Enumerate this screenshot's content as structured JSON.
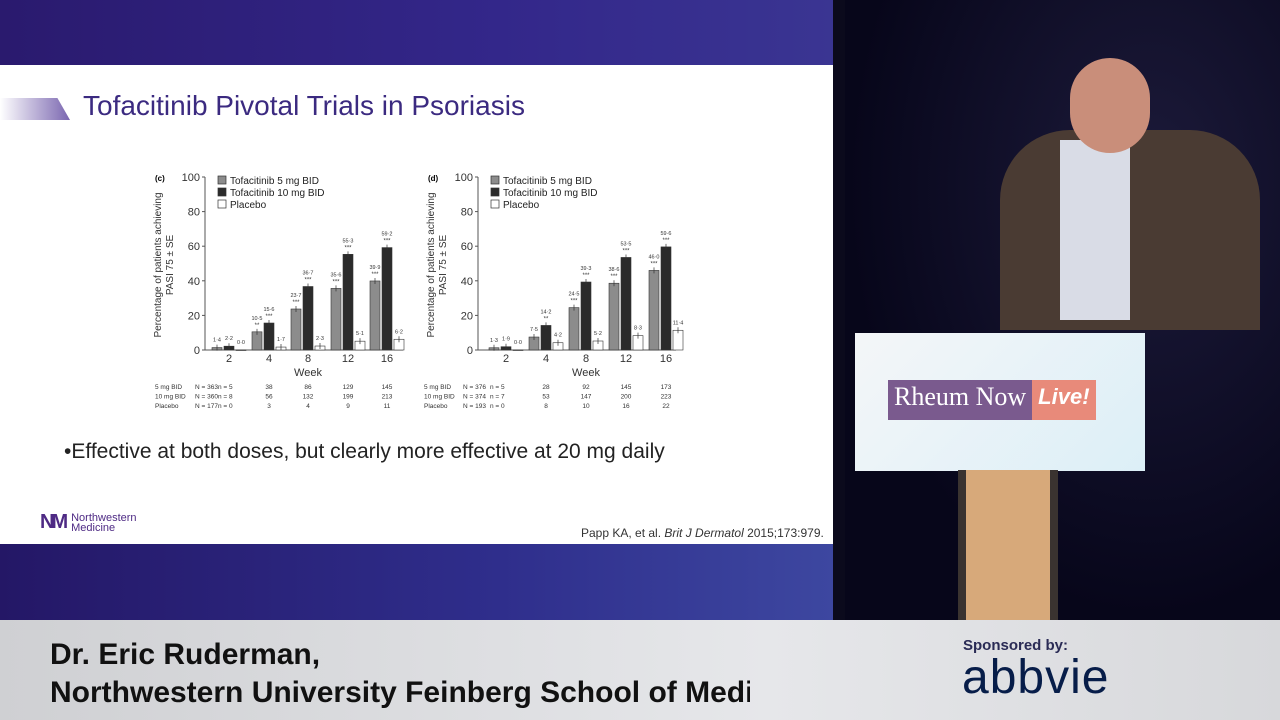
{
  "slide": {
    "title": "Tofacitinib Pivotal Trials in Psoriasis",
    "bullet": "Effective at both doses, but clearly more effective at 20 mg daily",
    "citation_prefix": "Papp KA, et al. ",
    "citation_journal": "Brit J Dermatol",
    "citation_suffix": " 2015;173:979.",
    "logo_mark": "NM",
    "logo_line1": "Northwestern",
    "logo_line2": "Medicine"
  },
  "stage": {
    "podium_brand": "Rheum Now",
    "podium_brand_live": "Live!"
  },
  "lower_third": {
    "speaker_name": "Dr. Eric Ruderman,",
    "speaker_affiliation": "Northwestern University Feinberg School of Medicine",
    "sponsored_label": "Sponsored by:",
    "sponsor": "abbvie"
  },
  "colors": {
    "series": [
      "#8c8c8c",
      "#2b2b2b",
      "#ffffff"
    ],
    "title": "#3b2a80"
  },
  "chart_data": [
    {
      "type": "bar",
      "panel": "(c)",
      "xlabel": "Week",
      "ylabel": [
        "Percentage of patients achieving",
        "PASI 75 ± SE"
      ],
      "ylim": [
        0,
        100
      ],
      "yticks": [
        0,
        20,
        40,
        60,
        80,
        100
      ],
      "categories": [
        "2",
        "4",
        "8",
        "12",
        "16"
      ],
      "legend": "top-left",
      "series": [
        {
          "name": "Tofacitinib 5 mg BID",
          "values": [
            1.4,
            10.5,
            23.7,
            35.6,
            39.9
          ],
          "labels": [
            "1·4",
            "10·5",
            "23·7",
            "35·6",
            "39·9"
          ],
          "sig": [
            "",
            "**",
            "***",
            "***",
            "***"
          ]
        },
        {
          "name": "Tofacitinib 10 mg BID",
          "values": [
            2.2,
            15.6,
            36.7,
            55.3,
            59.2
          ],
          "labels": [
            "2·2",
            "15·6",
            "36·7",
            "55·3",
            "59·2"
          ],
          "sig": [
            "",
            "***",
            "***",
            "***",
            "***"
          ]
        },
        {
          "name": "Placebo",
          "values": [
            0.0,
            1.7,
            2.3,
            5.1,
            6.2
          ],
          "labels": [
            "0·0",
            "1·7",
            "2·3",
            "5·1",
            "6·2"
          ],
          "sig": [
            "",
            "",
            "",
            "",
            ""
          ]
        }
      ],
      "n_table": [
        {
          "label": "5 mg BID",
          "N": "N = 363",
          "n": "n = 5",
          "values": [
            "38",
            "86",
            "129",
            "145"
          ]
        },
        {
          "label": "10 mg BID",
          "N": "N = 360",
          "n": "n = 8",
          "values": [
            "56",
            "132",
            "199",
            "213"
          ]
        },
        {
          "label": "Placebo",
          "N": "N = 177",
          "n": "n = 0",
          "values": [
            "3",
            "4",
            "9",
            "11"
          ]
        }
      ]
    },
    {
      "type": "bar",
      "panel": "(d)",
      "xlabel": "Week",
      "ylabel": [
        "Percentage of patients achieving",
        "PASI 75 ± SE"
      ],
      "ylim": [
        0,
        100
      ],
      "yticks": [
        0,
        20,
        40,
        60,
        80,
        100
      ],
      "categories": [
        "2",
        "4",
        "8",
        "12",
        "16"
      ],
      "legend": "top-left",
      "series": [
        {
          "name": "Tofacitinib 5 mg BID",
          "values": [
            1.3,
            7.5,
            24.5,
            38.6,
            46.0
          ],
          "labels": [
            "1·3",
            "7·5",
            "24·5",
            "38·6",
            "46·0"
          ],
          "sig": [
            "",
            "",
            "***",
            "***",
            "***"
          ]
        },
        {
          "name": "Tofacitinib 10 mg BID",
          "values": [
            1.9,
            14.2,
            39.3,
            53.5,
            59.6
          ],
          "labels": [
            "1·9",
            "14·2",
            "39·3",
            "53·5",
            "59·6"
          ],
          "sig": [
            "",
            "**",
            "***",
            "***",
            "***"
          ]
        },
        {
          "name": "Placebo",
          "values": [
            0.0,
            4.2,
            5.2,
            8.3,
            11.4
          ],
          "labels": [
            "0·0",
            "4·2",
            "5·2",
            "8·3",
            "11·4"
          ],
          "sig": [
            "",
            "",
            "",
            "",
            ""
          ]
        }
      ],
      "n_table": [
        {
          "label": "5 mg BID",
          "N": "N = 376",
          "n": "n = 5",
          "values": [
            "28",
            "92",
            "145",
            "173"
          ]
        },
        {
          "label": "10 mg BID",
          "N": "N = 374",
          "n": "n = 7",
          "values": [
            "53",
            "147",
            "200",
            "223"
          ]
        },
        {
          "label": "Placebo",
          "N": "N = 193",
          "n": "n = 0",
          "values": [
            "8",
            "10",
            "16",
            "22"
          ]
        }
      ]
    }
  ]
}
